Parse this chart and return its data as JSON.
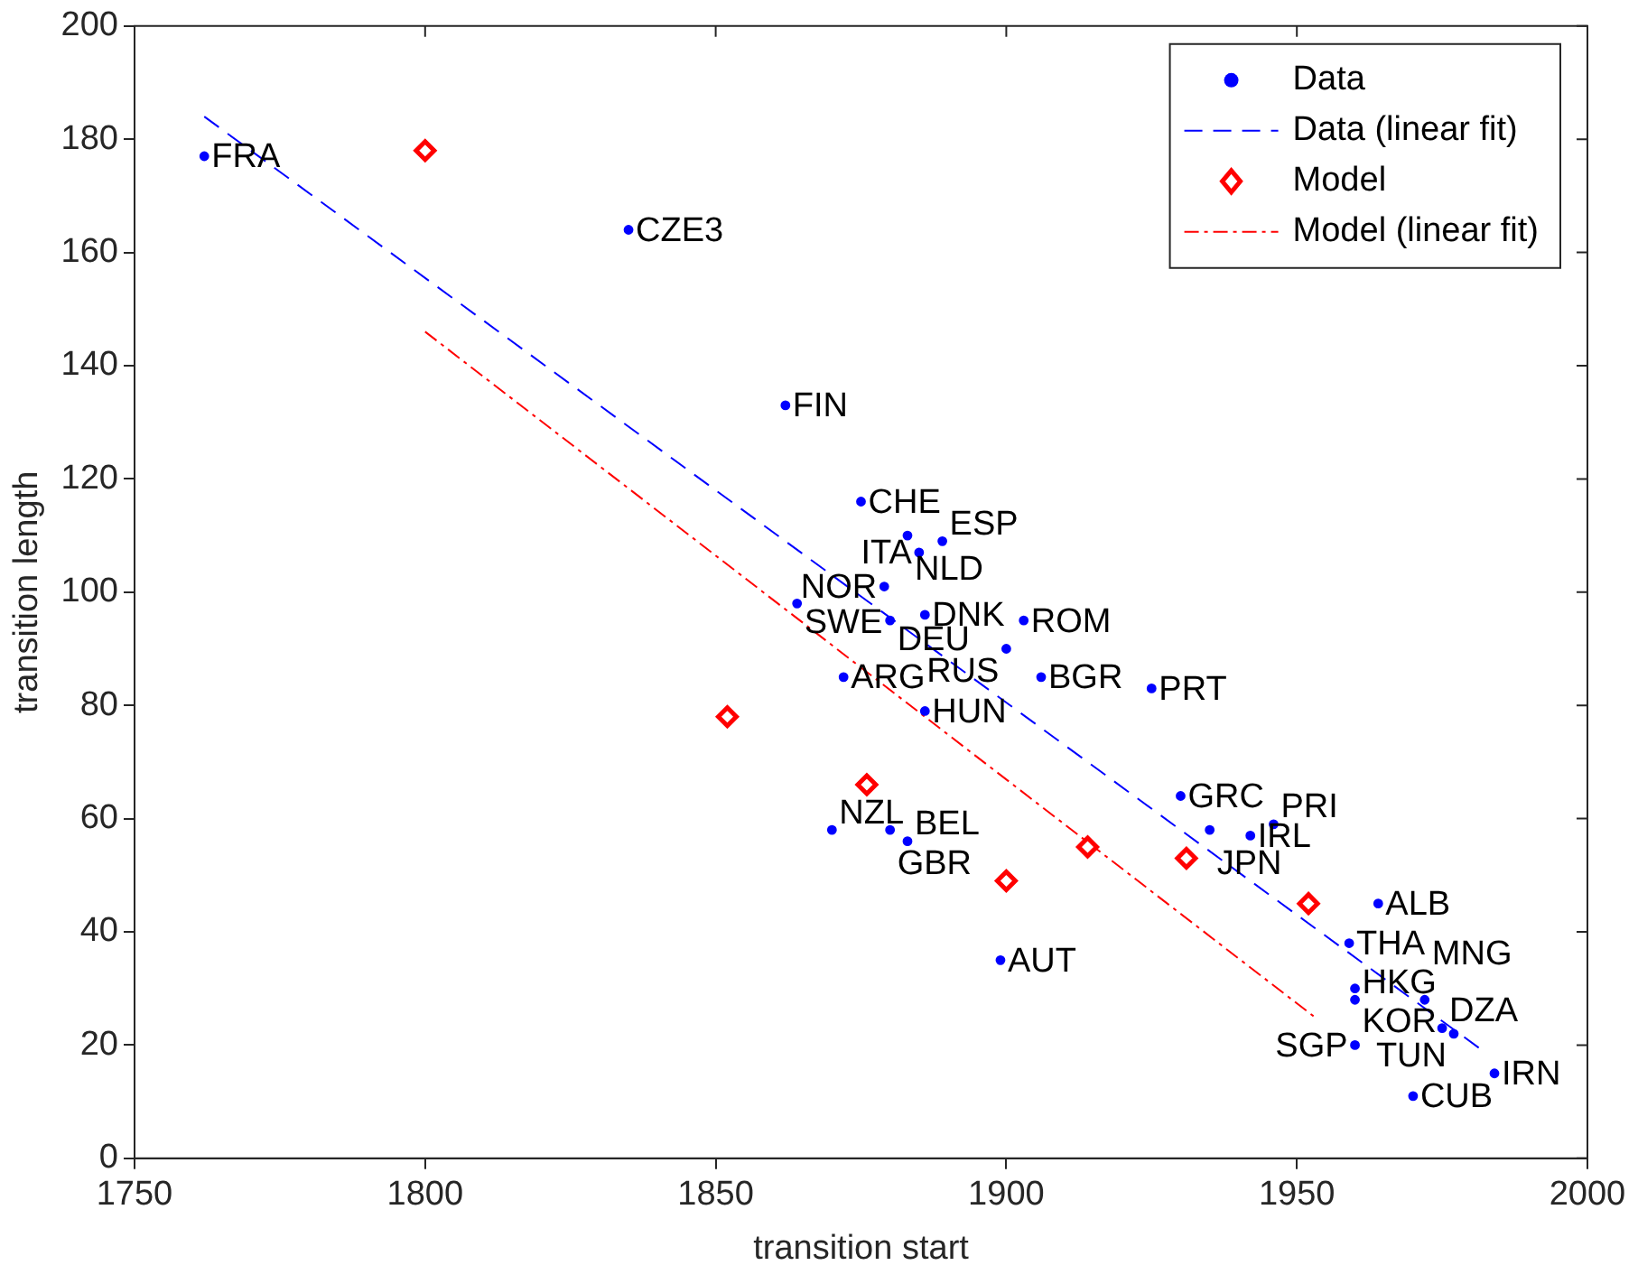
{
  "chart_data": {
    "type": "scatter",
    "xlabel": "transition start",
    "ylabel": "transition length",
    "xlim": [
      1750,
      2000
    ],
    "xticks": [
      1750,
      1800,
      1850,
      1900,
      1950,
      2000
    ],
    "ylim": [
      0,
      200
    ],
    "yticks": [
      0,
      20,
      40,
      60,
      80,
      100,
      120,
      140,
      160,
      180,
      200
    ],
    "grid": false,
    "legend": "top right",
    "series": [
      {
        "name": "Data",
        "marker": "circle",
        "color": "#0000ff",
        "x": [
          1762,
          1835,
          1862,
          1875,
          1883,
          1885,
          1889,
          1879,
          1864,
          1880,
          1886,
          1903,
          1900,
          1906,
          1925,
          1872,
          1886,
          1870,
          1880,
          1883,
          1930,
          1935,
          1942,
          1946,
          1899,
          1964,
          1959,
          1960,
          1960,
          1972,
          1975,
          1977,
          1984,
          1960,
          1970
        ],
        "values": [
          177,
          164,
          133,
          116,
          110,
          107,
          109,
          101,
          98,
          95,
          96,
          95,
          90,
          85,
          83,
          85,
          79,
          58,
          58,
          56,
          64,
          58,
          57,
          59,
          35,
          45,
          38,
          30,
          28,
          28,
          23,
          22,
          15,
          20,
          11
        ],
        "value_labels": [
          "FRA",
          "CZE3",
          "FIN",
          "CHE",
          "NLD",
          "ITA",
          "ESP",
          "NOR",
          "SWE",
          "DEU",
          "DNK",
          "ROM",
          "RUS",
          "BGR",
          "PRT",
          "ARG",
          "HUN",
          "NZL",
          "GBR",
          "BEL",
          "GRC",
          "JPN",
          "IRL",
          "PRI",
          "AUT",
          "ALB",
          "THA",
          "KOR",
          "HKG",
          "MNG",
          "DZA",
          "TUN",
          "IRN",
          "SGP",
          "CUB"
        ]
      },
      {
        "name": "Data (linear fit)",
        "type": "line",
        "line_style": "dashed",
        "marker": "none",
        "color": "#0000ff",
        "x": [
          1762,
          1982
        ],
        "values": [
          184,
          19
        ]
      },
      {
        "name": "Model",
        "marker": "diamond",
        "color": "#ff0000",
        "x": [
          1800,
          1852,
          1876,
          1900,
          1914,
          1931,
          1952
        ],
        "values": [
          178,
          78,
          66,
          49,
          55,
          53,
          45
        ]
      },
      {
        "name": "Model (linear fit)",
        "type": "line",
        "line_style": "dotted",
        "marker": "none",
        "color": "#ff0000",
        "x": [
          1800,
          1953
        ],
        "values": [
          146,
          25
        ]
      }
    ]
  }
}
